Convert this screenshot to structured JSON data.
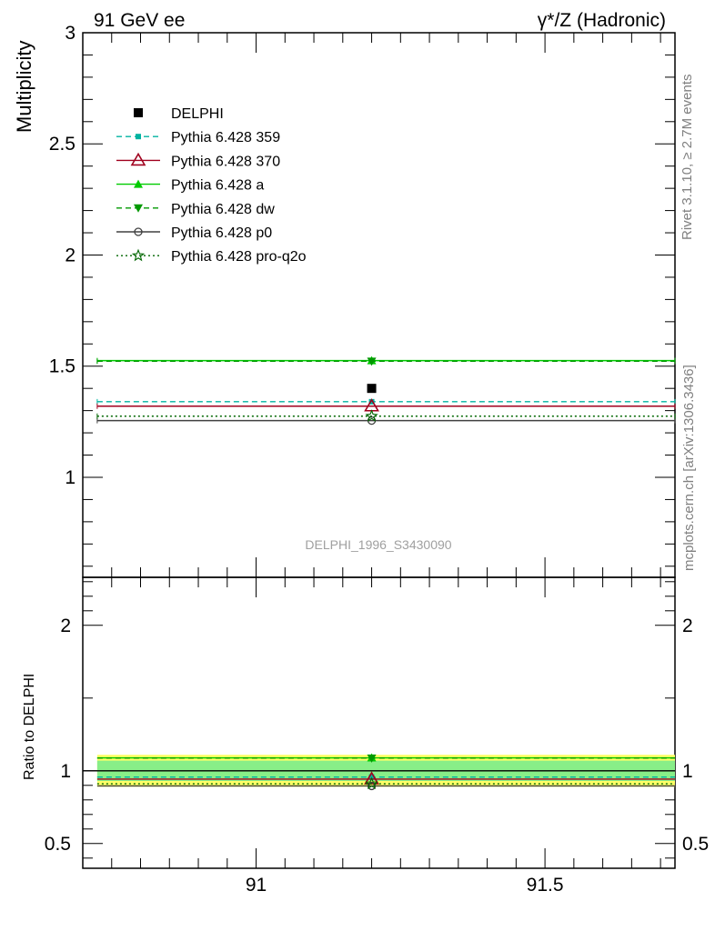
{
  "chart_data": [
    {
      "panel": "main",
      "type": "line",
      "title_left": "91 GeV ee",
      "title_right": "γ*/Z (Hadronic)",
      "ylabel": "Multiplicity",
      "xlim": [
        90.7,
        91.725
      ],
      "ylim": [
        0.55,
        3.0
      ],
      "xticks": [
        "91",
        "91.5"
      ],
      "yticks": [
        "1",
        "1.5",
        "2",
        "2.5",
        "3"
      ],
      "watermark": "DELPHI_1996_S3430090",
      "bin": [
        90.725,
        91.725
      ],
      "x_center": 91.2,
      "data": {
        "name": "DELPHI",
        "value": 1.4,
        "color": "#000000"
      },
      "series": [
        {
          "name": "Pythia 6.428 359",
          "value": 1.34,
          "color": "#00b3a0",
          "dash": "6,4",
          "marker": "square-small"
        },
        {
          "name": "Pythia 6.428 370",
          "value": 1.32,
          "color": "#a0001e",
          "dash": "",
          "marker": "triangle-open"
        },
        {
          "name": "Pythia 6.428 a",
          "value": 1.525,
          "color": "#00cc00",
          "dash": "",
          "marker": "triangle-up"
        },
        {
          "name": "Pythia 6.428 dw",
          "value": 1.522,
          "color": "#009900",
          "dash": "6,4",
          "marker": "triangle-down"
        },
        {
          "name": "Pythia 6.428 p0",
          "value": 1.255,
          "color": "#404040",
          "dash": "",
          "marker": "circle-open"
        },
        {
          "name": "Pythia 6.428 pro-q2o",
          "value": 1.275,
          "color": "#006600",
          "dash": "2,3",
          "marker": "star-open"
        }
      ]
    },
    {
      "panel": "ratio",
      "type": "line",
      "ylabel": "Ratio to DELPHI",
      "xlim": [
        90.7,
        91.725
      ],
      "ylim": [
        0.33,
        2.33
      ],
      "xticks": [
        "91",
        "91.5"
      ],
      "yticks": [
        "0.5",
        "1",
        "2"
      ],
      "band_inner": [
        0.93,
        1.07
      ],
      "band_outer": [
        0.89,
        1.11
      ],
      "ratios": [
        0.957,
        0.943,
        1.089,
        1.087,
        0.896,
        0.911
      ]
    }
  ],
  "side_text": {
    "rivet": "Rivet 3.1.10, ≥ 2.7M events",
    "mcplots": "mcplots.cern.ch [arXiv:1306.3436]"
  },
  "colors": {
    "band_outer": "#ffff66",
    "band_inner": "#88ee88",
    "axis": "#000000",
    "side_text": "#808080"
  }
}
